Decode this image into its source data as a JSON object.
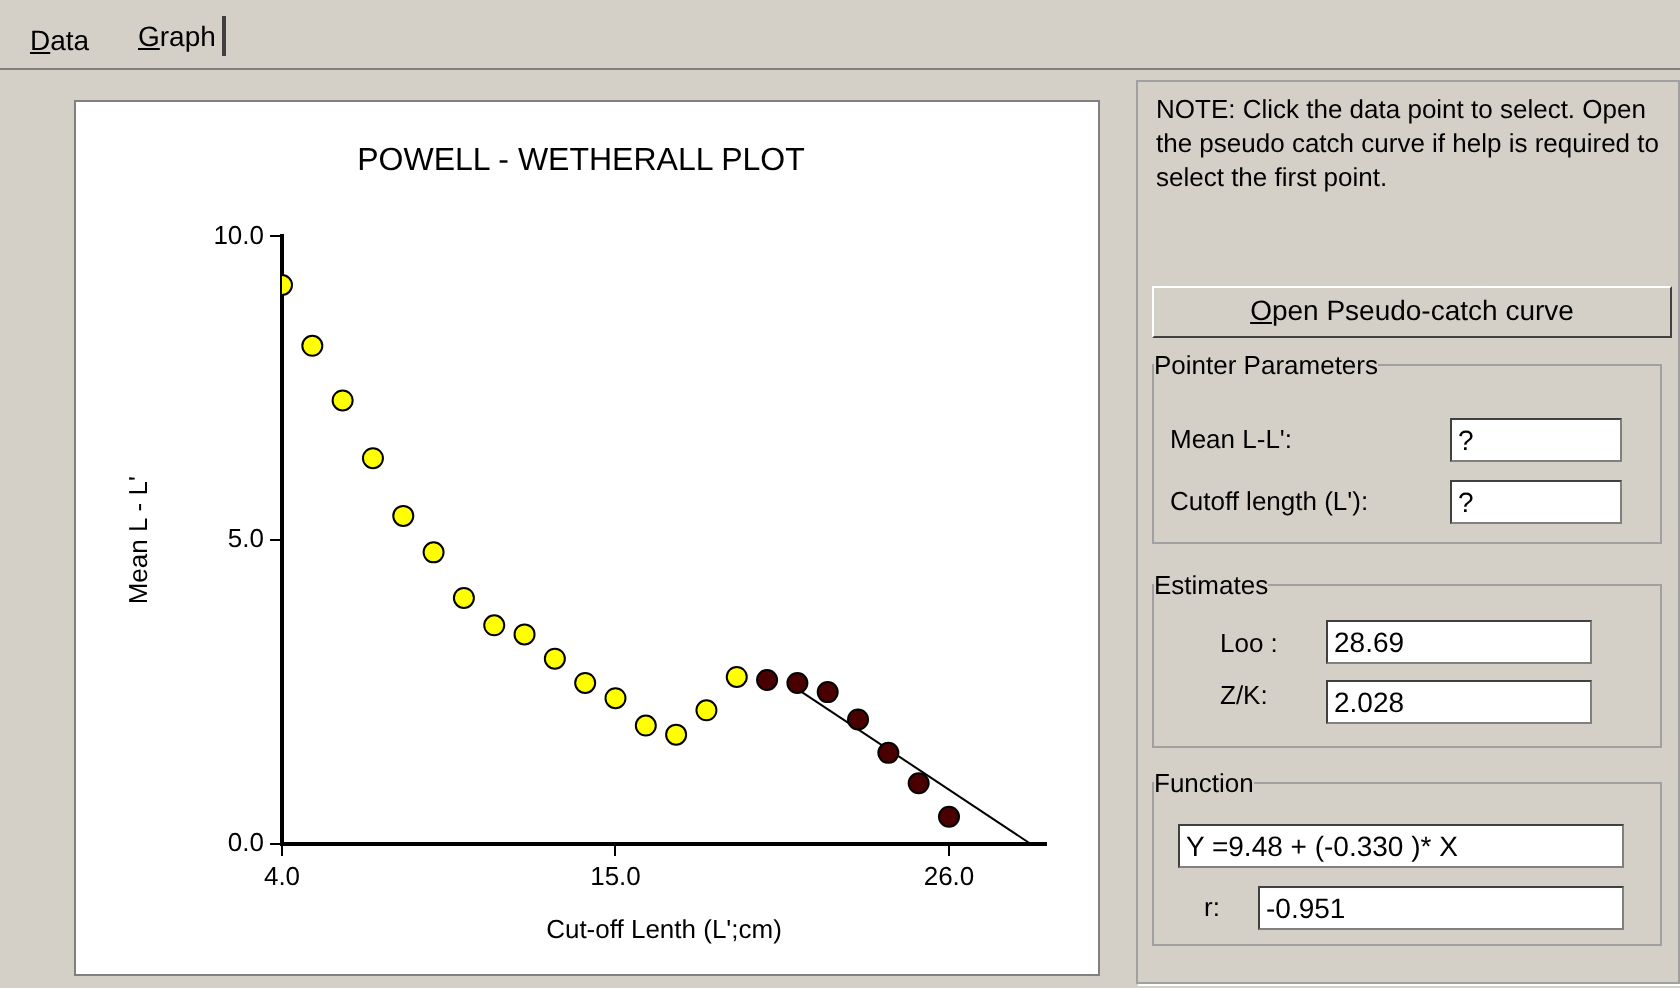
{
  "chart_data": [
    {
      "type": "scatter",
      "title": "POWELL - WETHERALL PLOT",
      "xlabel": "Cut-off Lenth (L';cm)",
      "ylabel": "Mean L - L'",
      "xlim": [
        4,
        29.2
      ],
      "ylim": [
        0,
        10
      ],
      "xticks": [
        {
          "value": 4,
          "label": "4.0"
        },
        {
          "value": 15,
          "label": "15.0"
        },
        {
          "value": 26,
          "label": "26.0"
        }
      ],
      "yticks": [
        {
          "value": 0,
          "label": "0.0"
        },
        {
          "value": 5,
          "label": "5.0"
        },
        {
          "value": 10,
          "label": "10.0"
        }
      ],
      "grid": false,
      "legend": false,
      "marker": "circle",
      "series": [
        {
          "color": "#ffff00",
          "x": [
            4,
            5,
            6,
            7,
            8,
            9,
            10,
            11,
            12,
            13,
            14,
            15,
            16,
            17,
            18,
            19
          ],
          "values": [
            9.2,
            8.2,
            7.3,
            6.35,
            5.4,
            4.8,
            4.05,
            3.6,
            3.45,
            3.05,
            2.65,
            2.4,
            1.95,
            1.8,
            2.2,
            2.75
          ]
        },
        {
          "color": "#4a0000",
          "x": [
            20,
            21,
            22,
            23,
            24,
            25,
            26
          ],
          "values": [
            2.7,
            2.65,
            2.5,
            2.05,
            1.5,
            1.0,
            0.45
          ]
        },
        {
          "type": "line",
          "color": "#000000",
          "marker": "none",
          "line_style": "solid",
          "x": [
            21,
            28.7
          ],
          "values": [
            2.55,
            0.0
          ]
        }
      ]
    },
    {
      "type": "other",
      "annotations": [
        "Data",
        "Graph",
        "NOTE: Click the data point to select. Open the pseudo catch curve if help is required to select the first point.",
        "Open Pseudo-catch curve",
        "Pointer Parameters",
        "Mean L-L':",
        "?",
        "Cutoff length (L'):",
        "?",
        "Estimates",
        "Loo :",
        "28.69",
        "Z/K:",
        "2.028",
        "Function",
        "Y =9.48 + (-0.330 )* X",
        "r:",
        "-0.951"
      ]
    }
  ]
}
